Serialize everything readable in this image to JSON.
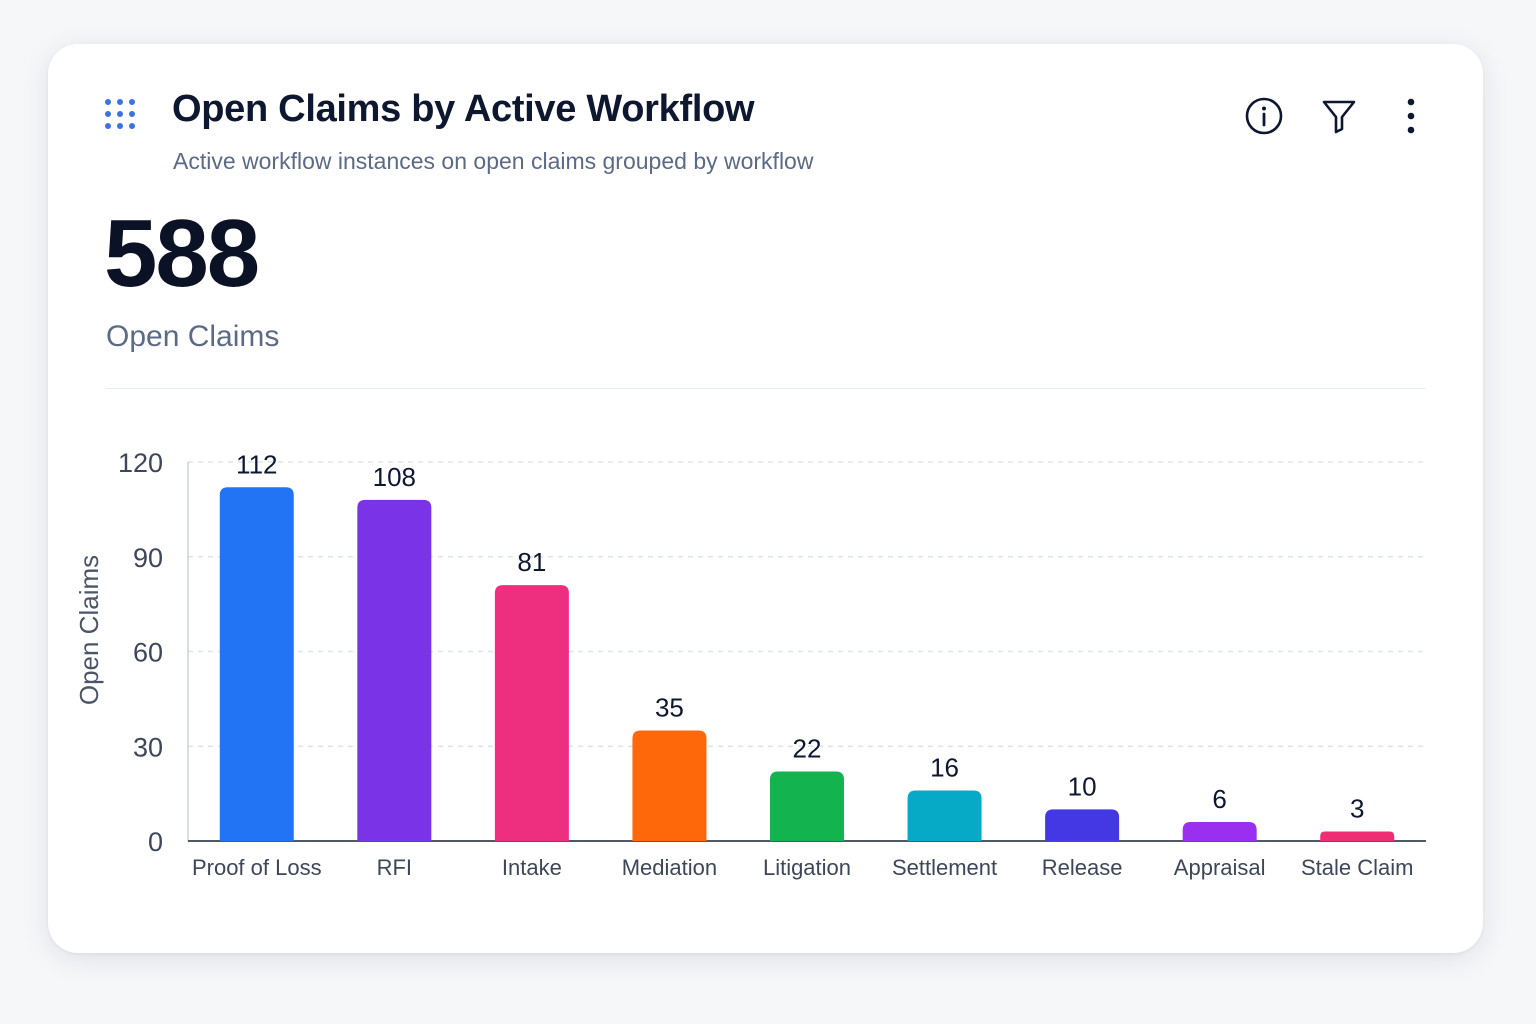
{
  "card": {
    "title": "Open Claims by Active Workflow",
    "subtitle": "Active workflow instances on open claims grouped by workflow"
  },
  "kpi": {
    "value": "588",
    "label": "Open Claims"
  },
  "icons": {
    "drag": "drag-handle-icon",
    "info": "info-icon",
    "filter": "filter-icon",
    "more": "more-vertical-icon"
  },
  "chart_data": {
    "type": "bar",
    "categories": [
      "Proof of Loss",
      "RFI",
      "Intake",
      "Mediation",
      "Litigation",
      "Settlement",
      "Release",
      "Appraisal",
      "Stale Claim"
    ],
    "values": [
      112,
      108,
      81,
      35,
      22,
      16,
      10,
      6,
      3
    ],
    "colors": [
      "#2373f5",
      "#7b33e8",
      "#ee2f80",
      "#ff680a",
      "#13b350",
      "#06a9c6",
      "#4338e3",
      "#9a2ff0",
      "#ef2d72"
    ],
    "ylabel": "Open Claims",
    "ylim": [
      0,
      120
    ],
    "yticks": [
      0,
      30,
      60,
      90,
      120
    ],
    "grid": true
  }
}
